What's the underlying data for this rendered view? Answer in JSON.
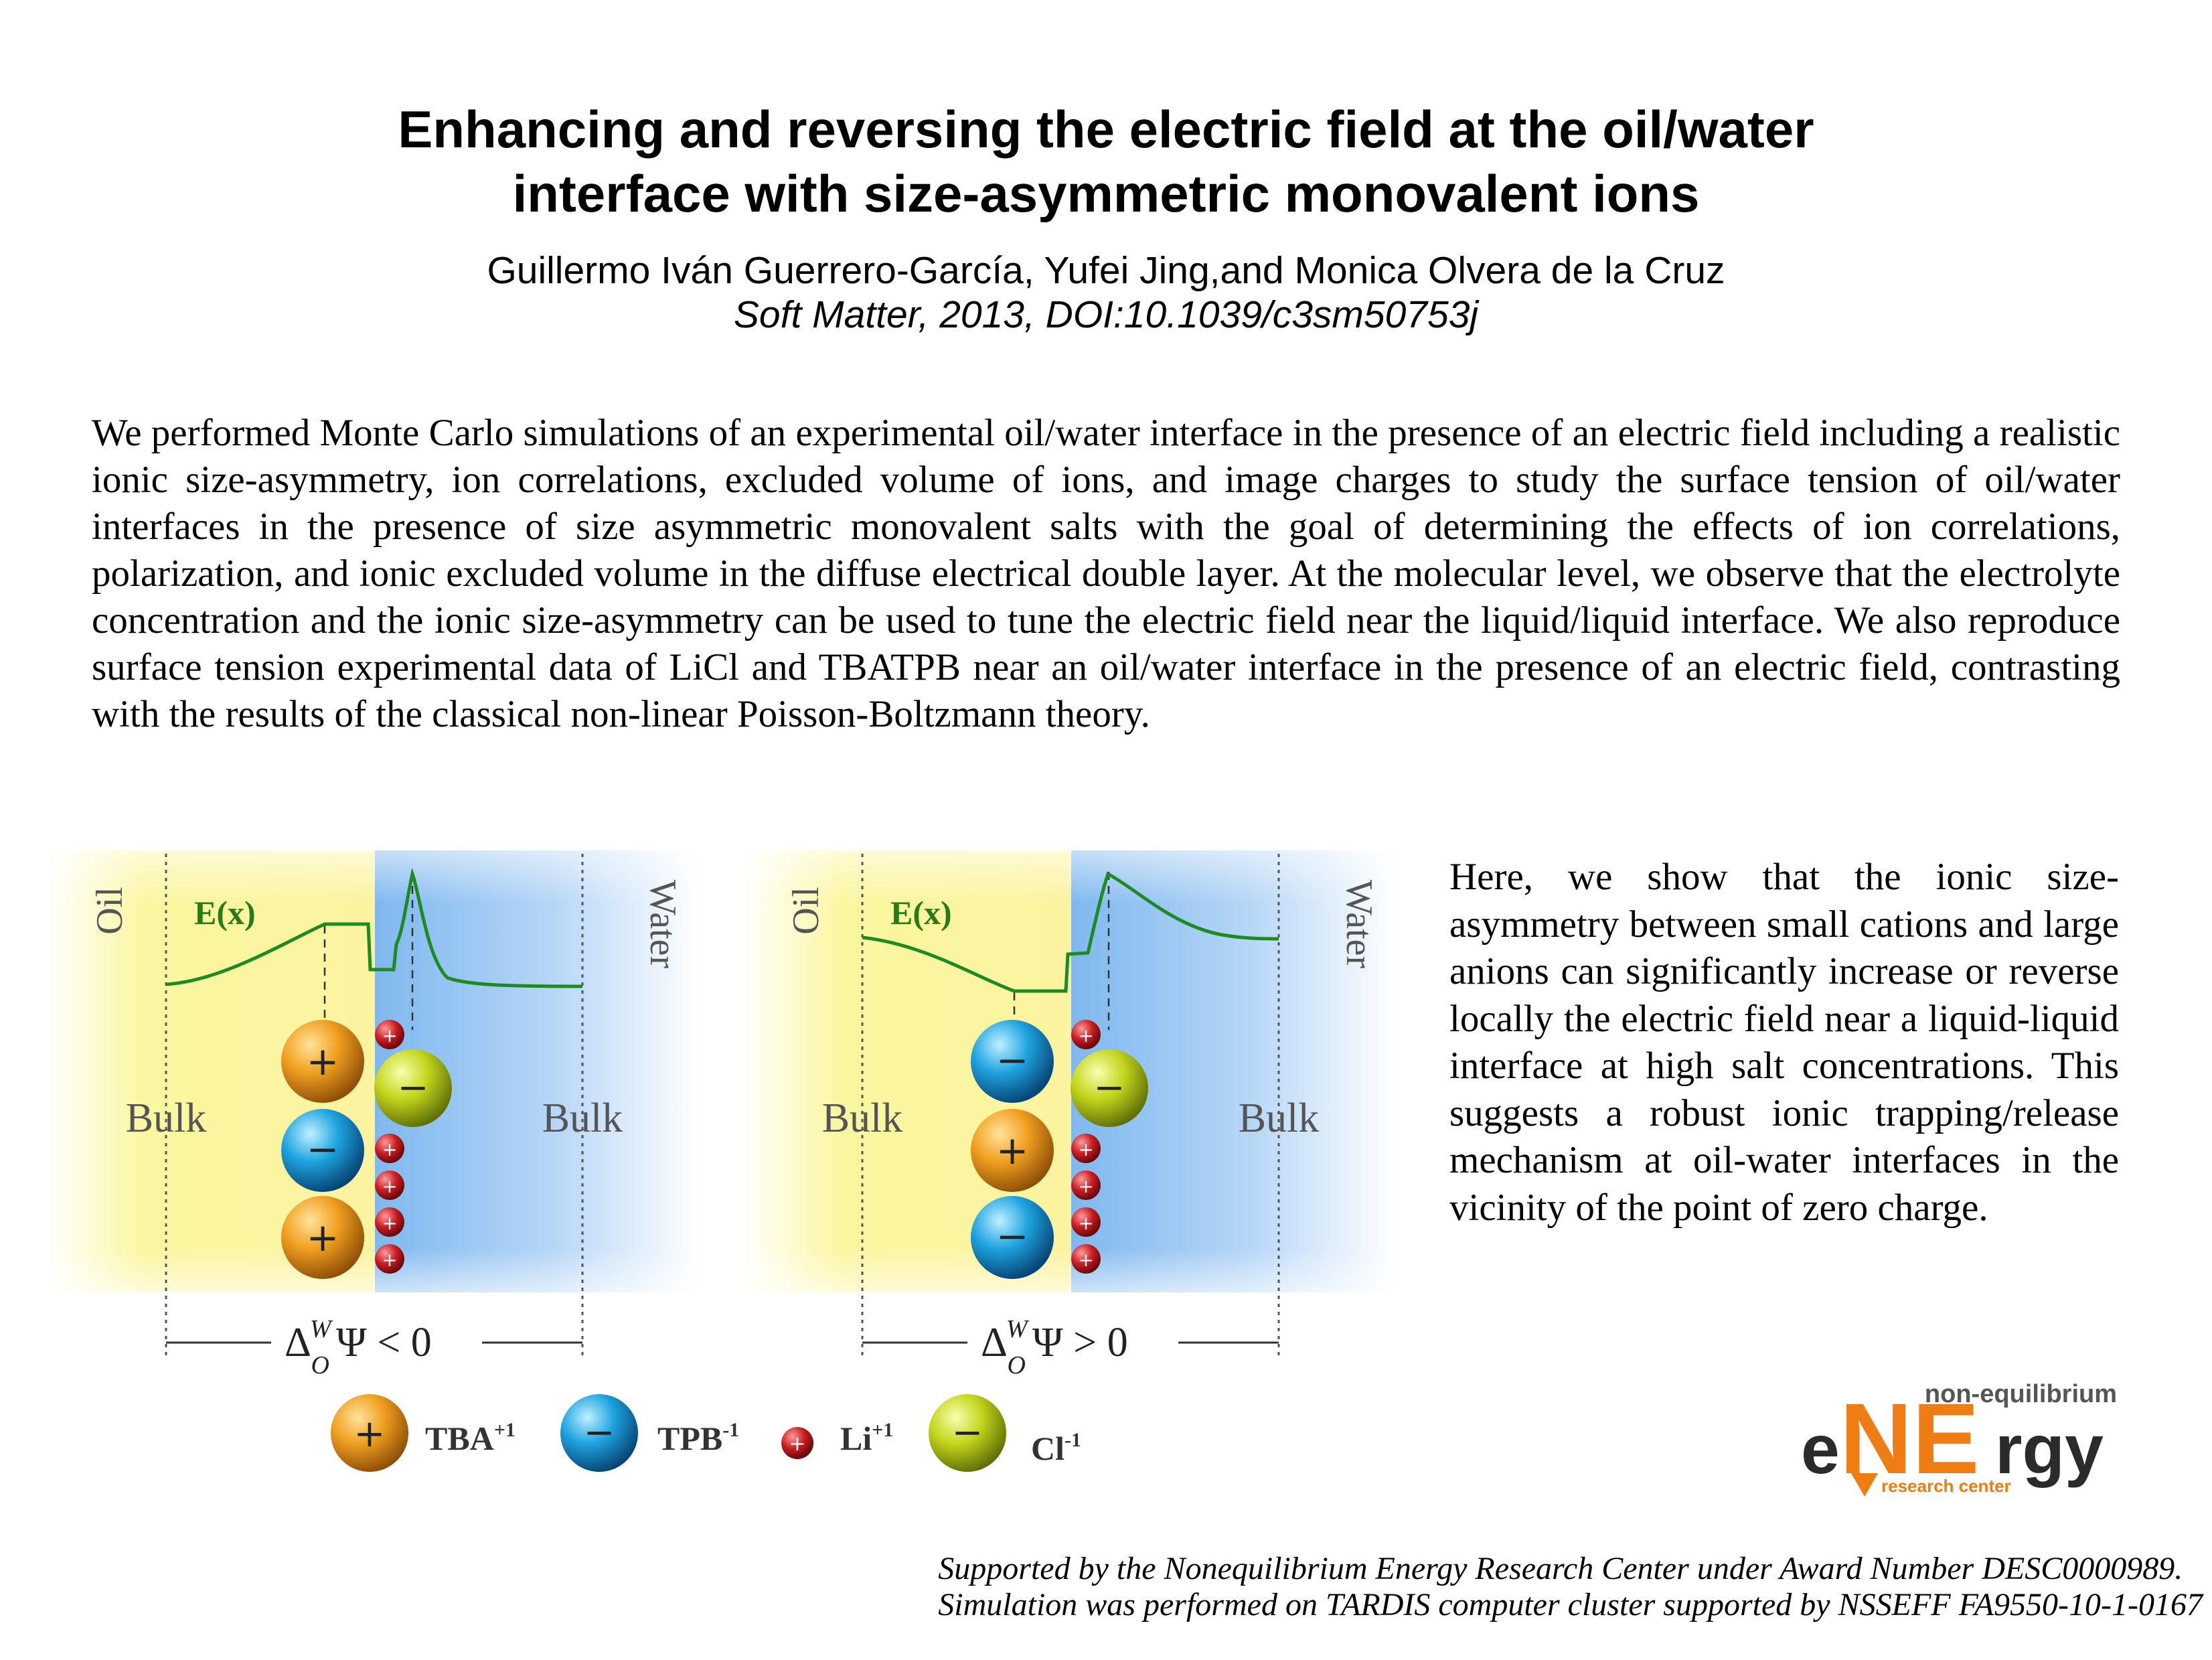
{
  "title": {
    "line1": "Enhancing and reversing the electric field at the oil/water",
    "line2": "interface with size-asymmetric monovalent ions"
  },
  "authors": "Guillermo Iván Guerrero-García, Yufei Jing,and Monica Olvera de la Cruz",
  "journal": "Soft Matter, 2013, DOI:10.1039/c3sm50753j",
  "abstract": "We performed Monte Carlo simulations of an experimental oil/water interface in the presence of an electric field including a realistic ionic size-asymmetry, ion correlations, excluded volume of ions, and image charges to study the surface tension of oil/water interfaces in the presence of size asymmetric monovalent salts with the goal of determining the effects of ion correlations, polarization, and ionic excluded volume in the diffuse electrical double layer. At the molecular level, we observe that the electrolyte concentration and the ionic size-asymmetry can be used to tune the electric field near the liquid/liquid interface. We also reproduce surface tension experimental data of LiCl and TBATPB near an oil/water interface in the presence of an electric field, contrasting with the results of the classical non-linear Poisson-Boltzmann theory.",
  "side_text": "Here, we show that the ionic size-asymmetry between small cations and large anions can significantly increase or reverse locally the electric field near a liquid-liquid interface at high salt concentrations. This suggests a robust ionic trapping/release mechanism at oil-water interfaces in the vicinity of the point of zero charge.",
  "figure": {
    "panels": [
      {
        "oil": "Oil",
        "water": "Water",
        "field": "E(x)",
        "bulk_left": "Bulk",
        "bulk_right": "Bulk",
        "delta": "Δ",
        "sup": "W",
        "sub": "O",
        "condition": "Ψ < 0"
      },
      {
        "oil": "Oil",
        "water": "Water",
        "field": "E(x)",
        "bulk_left": "Bulk",
        "bulk_right": "Bulk",
        "delta": "Δ",
        "sup": "W",
        "sub": "O",
        "condition": "Ψ > 0"
      }
    ],
    "legend": [
      {
        "name": "TBA",
        "charge": "+1",
        "sign": "+",
        "color": "orange"
      },
      {
        "name": "TPB",
        "charge": "-1",
        "sign": "−",
        "color": "blue"
      },
      {
        "name": "Li",
        "charge": "+1",
        "sign": "+",
        "color": "red"
      },
      {
        "name": "Cl",
        "charge": "-1",
        "sign": "−",
        "color": "yellow-green"
      }
    ],
    "colors": {
      "oil": "#fbf6a0",
      "water": "#7fb8ee",
      "curve": "#1e8a22",
      "field_label": "#2a7a1a"
    }
  },
  "logo": {
    "top": "non-equilibrium",
    "e": "e",
    "ne": "NE",
    "rgy": "rgy",
    "bottom": "research center",
    "colors": {
      "orange": "#f07d14",
      "dark": "#2b2b2b",
      "grey": "#555555"
    }
  },
  "support": {
    "line1": "Supported by the Nonequilibrium Energy Research Center under Award Number DESC0000989.",
    "line2": "Simulation was performed on TARDIS computer cluster supported by NSSEFF FA9550-10-1-0167"
  }
}
